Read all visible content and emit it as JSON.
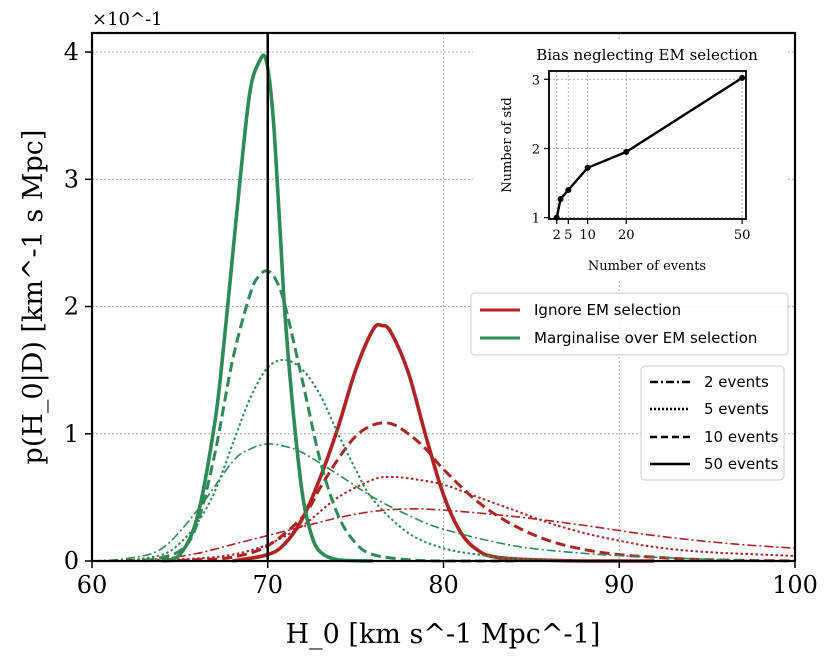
{
  "chart_data": {
    "type": "line",
    "xlabel": "H_0 [km s^-1 Mpc^-1]",
    "ylabel": "p(H_0|D) [km^-1 s Mpc]",
    "scale_label": "×10^-1",
    "xlim": [
      60,
      100
    ],
    "ylim": [
      0,
      4.15
    ],
    "x_ticks": [
      "60",
      "70",
      "80",
      "90",
      "100"
    ],
    "y_ticks": [
      "0",
      "1",
      "2",
      "3",
      "4"
    ],
    "true_value": 70,
    "colors": {
      "ignore": "#b22222",
      "marginalise": "#2e8b57"
    },
    "legend_methods": [
      "Ignore EM selection",
      "Marginalise over EM selection"
    ],
    "legend_events": [
      "2 events",
      "5 events",
      "10 events",
      "50 events"
    ],
    "series": [
      {
        "name": "Ignore EM selection, 2 events",
        "method": "ignore",
        "events": 2,
        "x": [
          60,
          62,
          64,
          66,
          68,
          70,
          72,
          74,
          76,
          78,
          80,
          84,
          88,
          92,
          96,
          100
        ],
        "y": [
          0.0,
          0.01,
          0.02,
          0.06,
          0.13,
          0.2,
          0.27,
          0.34,
          0.39,
          0.41,
          0.4,
          0.35,
          0.28,
          0.2,
          0.14,
          0.1
        ]
      },
      {
        "name": "Ignore EM selection, 5 events",
        "method": "ignore",
        "events": 5,
        "x": [
          62,
          64,
          66,
          68,
          70,
          72,
          74,
          76,
          77,
          78,
          80,
          82,
          84,
          86,
          88,
          90,
          92,
          95,
          100
        ],
        "y": [
          0.0,
          0.01,
          0.02,
          0.05,
          0.13,
          0.28,
          0.5,
          0.64,
          0.66,
          0.65,
          0.6,
          0.5,
          0.4,
          0.3,
          0.22,
          0.16,
          0.11,
          0.07,
          0.04
        ]
      },
      {
        "name": "Ignore EM selection, 10 events",
        "method": "ignore",
        "events": 10,
        "x": [
          64,
          66,
          68,
          70,
          72,
          73,
          74,
          75,
          76,
          77,
          78,
          79,
          80,
          82,
          84,
          86,
          88,
          90,
          92,
          95,
          100
        ],
        "y": [
          0.0,
          0.01,
          0.03,
          0.12,
          0.35,
          0.58,
          0.8,
          0.98,
          1.07,
          1.08,
          1.0,
          0.88,
          0.72,
          0.46,
          0.28,
          0.16,
          0.09,
          0.05,
          0.03,
          0.01,
          0.0
        ]
      },
      {
        "name": "Ignore EM selection, 50 events",
        "method": "ignore",
        "events": 50,
        "x": [
          68,
          70,
          71,
          72,
          73,
          74,
          75,
          76,
          76.5,
          77,
          78,
          79,
          80,
          81,
          82,
          83,
          85,
          88,
          92
        ],
        "y": [
          0.0,
          0.05,
          0.14,
          0.34,
          0.66,
          1.05,
          1.5,
          1.82,
          1.85,
          1.8,
          1.48,
          0.98,
          0.52,
          0.22,
          0.08,
          0.03,
          0.01,
          0.0,
          0.0
        ]
      },
      {
        "name": "Marginalise over EM selection, 2 events",
        "method": "marginalise",
        "events": 2,
        "x": [
          60,
          62,
          64,
          66,
          68,
          69,
          70,
          71,
          72,
          74,
          76,
          78,
          80,
          84,
          88,
          92,
          96,
          100
        ],
        "y": [
          0.0,
          0.02,
          0.1,
          0.4,
          0.78,
          0.88,
          0.92,
          0.9,
          0.85,
          0.68,
          0.5,
          0.36,
          0.25,
          0.12,
          0.06,
          0.03,
          0.01,
          0.0
        ]
      },
      {
        "name": "Marginalise over EM selection, 5 events",
        "method": "marginalise",
        "events": 5,
        "x": [
          62,
          64,
          65,
          66,
          67,
          68,
          69,
          70,
          71,
          72,
          73,
          74,
          75,
          76,
          78,
          80,
          82,
          84,
          88,
          92
        ],
        "y": [
          0.0,
          0.05,
          0.14,
          0.3,
          0.55,
          0.92,
          1.28,
          1.52,
          1.58,
          1.5,
          1.3,
          1.0,
          0.72,
          0.48,
          0.22,
          0.1,
          0.05,
          0.02,
          0.0,
          0.0
        ]
      },
      {
        "name": "Marginalise over EM selection, 10 events",
        "method": "marginalise",
        "events": 10,
        "x": [
          63,
          65,
          66,
          67,
          68,
          69,
          69.5,
          70,
          70.5,
          71,
          72,
          73,
          74,
          75,
          76,
          78,
          80,
          84
        ],
        "y": [
          0.0,
          0.08,
          0.3,
          0.85,
          1.58,
          2.1,
          2.24,
          2.28,
          2.2,
          2.0,
          1.4,
          0.78,
          0.36,
          0.14,
          0.05,
          0.01,
          0.0,
          0.0
        ]
      },
      {
        "name": "Marginalise over EM selection, 50 events",
        "method": "marginalise",
        "events": 50,
        "x": [
          64,
          65,
          66,
          67,
          67.5,
          68,
          68.5,
          69,
          69.5,
          69.9,
          70.3,
          70.7,
          71,
          71.5,
          72,
          72.5,
          73,
          74,
          76
        ],
        "y": [
          0.0,
          0.05,
          0.35,
          1.1,
          1.7,
          2.4,
          3.1,
          3.7,
          3.92,
          3.94,
          3.5,
          2.6,
          1.9,
          1.1,
          0.5,
          0.2,
          0.07,
          0.01,
          0.0
        ]
      }
    ],
    "inset": {
      "title": "Bias neglecting EM selection",
      "xlabel": "Number of events",
      "ylabel": "Number of std",
      "x_ticks": [
        "2",
        "5",
        "10",
        "20",
        "50"
      ],
      "y_ticks": [
        "1",
        "2",
        "3"
      ],
      "xlim": [
        0,
        51
      ],
      "ylim": [
        0.98,
        3.12
      ],
      "points_x": [
        2,
        3,
        5,
        10,
        20,
        50
      ],
      "points_y": [
        1.0,
        1.27,
        1.4,
        1.72,
        1.95,
        3.02
      ]
    }
  }
}
